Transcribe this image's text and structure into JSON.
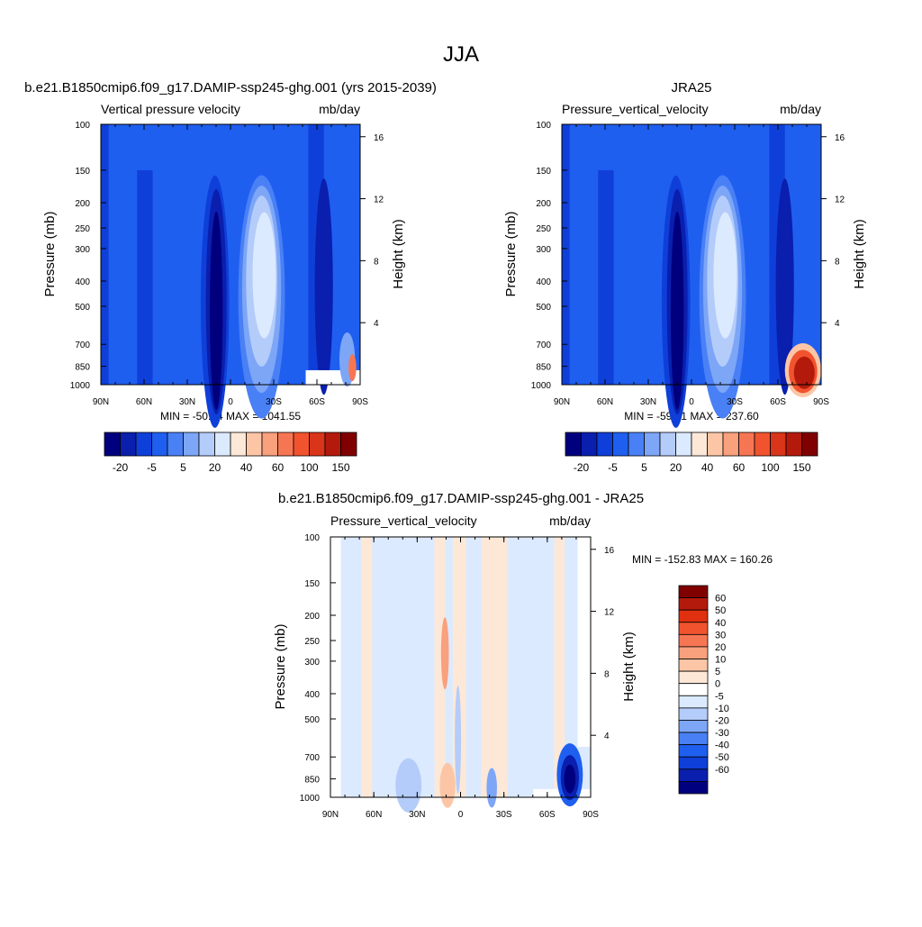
{
  "page_title": "JJA",
  "chart_data": [
    {
      "type": "heatmap",
      "title": "b.e21.B1850cmip6.f09_g17.DAMIP-ssp245-ghg.001 (yrs 2015-2039)",
      "variable_label": "Vertical pressure velocity",
      "units_label": "mb/day",
      "ylabel": "Pressure (mb)",
      "ylabel_right": "Height (km)",
      "x_ticks": [
        "90N",
        "60N",
        "30N",
        "0",
        "30S",
        "60S",
        "90S"
      ],
      "y_ticks": [
        "100",
        "150",
        "200",
        "250",
        "300",
        "400",
        "500",
        "700",
        "850",
        "1000"
      ],
      "y_right_ticks": [
        "16",
        "12",
        "8",
        "4"
      ],
      "stats_text": "MIN = -50.64  MAX = 1041.55",
      "colorbar_labels": [
        "-20",
        "-5",
        "5",
        "20",
        "40",
        "60",
        "100",
        "150"
      ],
      "colorbar_orientation": "horizontal",
      "colors": [
        "#00007f",
        "#0a1fae",
        "#0f3fd9",
        "#1f5ff0",
        "#4a80f5",
        "#7da6f7",
        "#b4ccfa",
        "#dceaff",
        "#fde8d8",
        "#fcc6a6",
        "#f9a07d",
        "#f67654",
        "#f0532e",
        "#d8351a",
        "#b41a0c",
        "#800000"
      ],
      "xlim": [
        "90N",
        "90S"
      ],
      "ylim": [
        1000,
        100
      ],
      "y_scale": "log"
    },
    {
      "type": "heatmap",
      "title": "JRA25",
      "variable_label": "Pressure_vertical_velocity",
      "units_label": "mb/day",
      "ylabel": "Pressure (mb)",
      "ylabel_right": "Height (km)",
      "x_ticks": [
        "90N",
        "60N",
        "30N",
        "0",
        "30S",
        "60S",
        "90S"
      ],
      "y_ticks": [
        "100",
        "150",
        "200",
        "250",
        "300",
        "400",
        "500",
        "700",
        "850",
        "1000"
      ],
      "y_right_ticks": [
        "16",
        "12",
        "8",
        "4"
      ],
      "stats_text": "MIN = -59.81  MAX = 237.60",
      "colorbar_labels": [
        "-20",
        "-5",
        "5",
        "20",
        "40",
        "60",
        "100",
        "150"
      ],
      "colorbar_orientation": "horizontal",
      "colors": [
        "#00007f",
        "#0a1fae",
        "#0f3fd9",
        "#1f5ff0",
        "#4a80f5",
        "#7da6f7",
        "#b4ccfa",
        "#dceaff",
        "#fde8d8",
        "#fcc6a6",
        "#f9a07d",
        "#f67654",
        "#f0532e",
        "#d8351a",
        "#b41a0c",
        "#800000"
      ],
      "xlim": [
        "90N",
        "90S"
      ],
      "ylim": [
        1000,
        100
      ],
      "y_scale": "log"
    },
    {
      "type": "heatmap",
      "title": "b.e21.B1850cmip6.f09_g17.DAMIP-ssp245-ghg.001 - JRA25",
      "variable_label": "Pressure_vertical_velocity",
      "units_label": "mb/day",
      "ylabel": "Pressure (mb)",
      "ylabel_right": "Height (km)",
      "x_ticks": [
        "90N",
        "60N",
        "30N",
        "0",
        "30S",
        "60S",
        "90S"
      ],
      "y_ticks": [
        "100",
        "150",
        "200",
        "250",
        "300",
        "400",
        "500",
        "700",
        "850",
        "1000"
      ],
      "y_right_ticks": [
        "16",
        "12",
        "8",
        "4"
      ],
      "stats_text": "MIN = -152.83  MAX = 160.26",
      "colorbar_labels": [
        "60",
        "50",
        "40",
        "30",
        "20",
        "10",
        "5",
        "0",
        "-5",
        "-10",
        "-20",
        "-30",
        "-40",
        "-50",
        "-60"
      ],
      "colorbar_orientation": "vertical",
      "colors": [
        "#800000",
        "#b41a0c",
        "#e0300f",
        "#f0532e",
        "#f67654",
        "#f9a07d",
        "#fcc6a6",
        "#fde8d8",
        "#ffffff",
        "#dceaff",
        "#b4ccfa",
        "#7da6f7",
        "#4a80f5",
        "#1f5ff0",
        "#0f3fd9",
        "#0a1fae",
        "#00007f"
      ],
      "xlim": [
        "90N",
        "90S"
      ],
      "ylim": [
        1000,
        100
      ],
      "y_scale": "log"
    }
  ]
}
